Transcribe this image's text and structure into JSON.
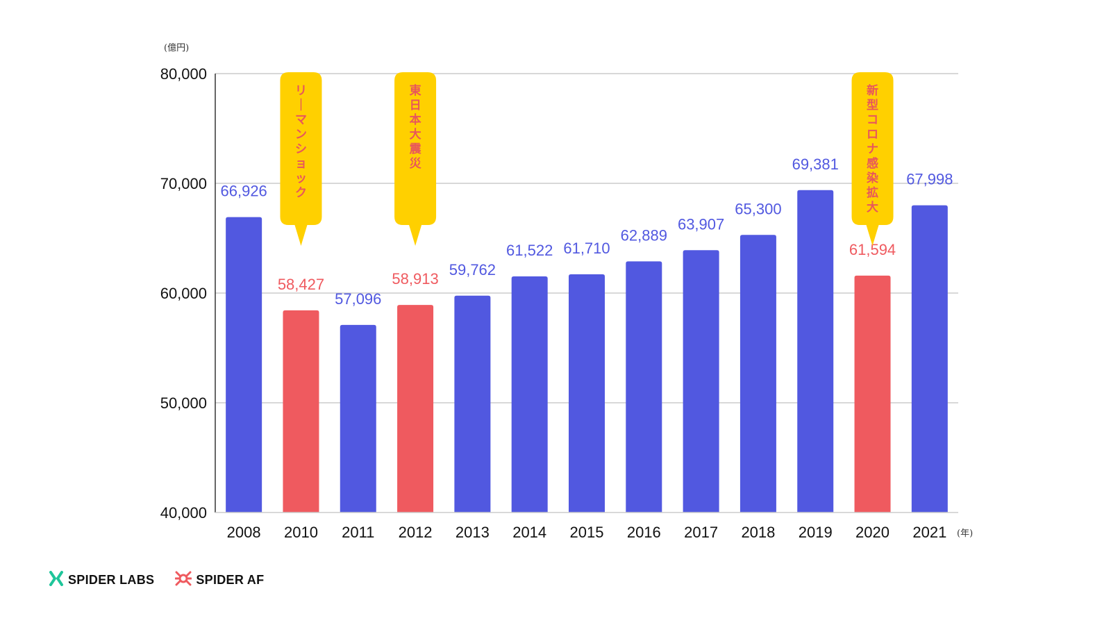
{
  "chart_data": {
    "type": "bar",
    "y_unit": "(億円)",
    "x_unit": "(年)",
    "ylim": [
      40000,
      80000
    ],
    "yticks": [
      40000,
      50000,
      60000,
      70000,
      80000
    ],
    "ytick_labels": [
      "40,000",
      "50,000",
      "60,000",
      "70,000",
      "80,000"
    ],
    "grid": true,
    "categories": [
      "2008",
      "2010",
      "2011",
      "2012",
      "2013",
      "2014",
      "2015",
      "2016",
      "2017",
      "2018",
      "2019",
      "2020",
      "2021"
    ],
    "values": [
      66926,
      58427,
      57096,
      58913,
      59762,
      61522,
      61710,
      62889,
      63907,
      65300,
      69381,
      61594,
      67998
    ],
    "value_labels": [
      "66,926",
      "58,427",
      "57,096",
      "58,913",
      "59,762",
      "61,522",
      "61,710",
      "62,889",
      "63,907",
      "65,300",
      "69,381",
      "61,594",
      "67,998"
    ],
    "highlighted": [
      false,
      true,
      false,
      true,
      false,
      false,
      false,
      false,
      false,
      false,
      false,
      true,
      false
    ],
    "colors": {
      "normal": "#5158e0",
      "highlight": "#ef5a5f",
      "callout_bg": "#ffd000",
      "callout_text": "#e8565c",
      "grid": "#cccccc"
    },
    "annotations": [
      {
        "category": "2010",
        "text": "リーマンショック"
      },
      {
        "category": "2012",
        "text": "東日本大震災"
      },
      {
        "category": "2020",
        "text": "新型コロナ感染拡大"
      }
    ]
  },
  "footer": {
    "logos": [
      {
        "label": "SPIDER LABS",
        "icon": "spider-labs-icon",
        "color": "#1ec59a"
      },
      {
        "label": "SPIDER AF",
        "icon": "spider-af-icon",
        "color": "#ef5a5f"
      }
    ]
  }
}
